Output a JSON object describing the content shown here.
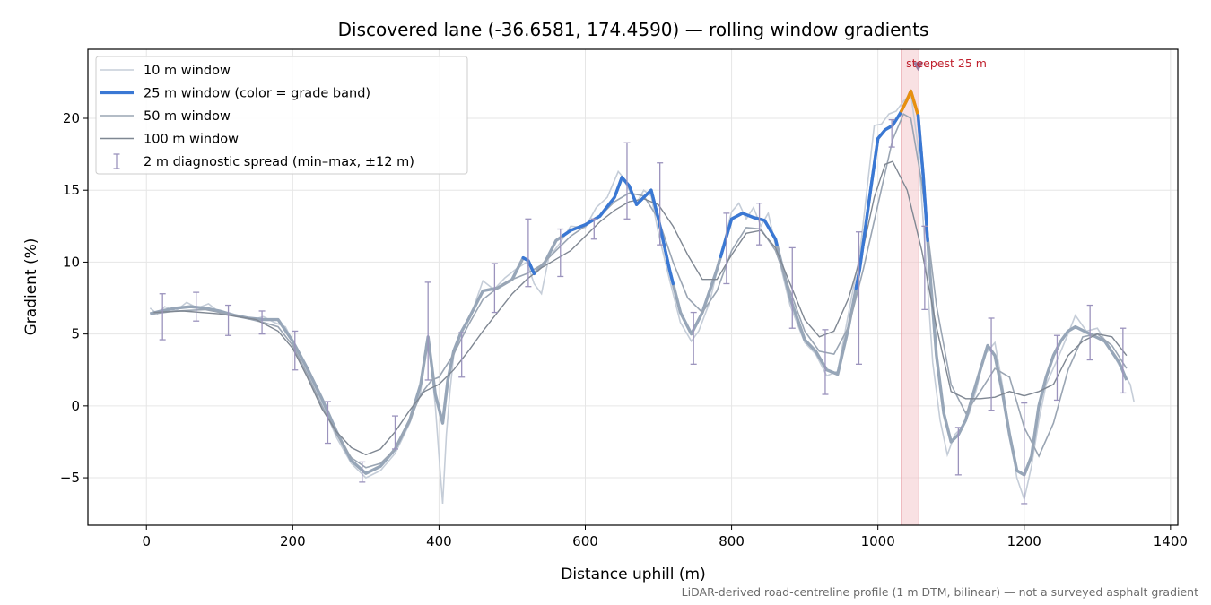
{
  "chart_data": {
    "type": "line",
    "title": "Discovered lane (-36.6581, 174.4590) — rolling window gradients",
    "xlabel": "Distance uphill (m)",
    "ylabel": "Gradient (%)",
    "footnote": "LiDAR-derived road-centreline profile (1 m DTM, bilinear) — not a surveyed asphalt gradient",
    "xlim": [
      -80,
      1410
    ],
    "ylim": [
      -8.3,
      24.8
    ],
    "xticks": [
      0,
      200,
      400,
      600,
      800,
      1000,
      1200,
      1400
    ],
    "yticks": [
      -5,
      0,
      5,
      10,
      15,
      20
    ],
    "xtick_labels": [
      "0",
      "200",
      "400",
      "600",
      "800",
      "1000",
      "1200",
      "1400"
    ],
    "ytick_labels": [
      "−5",
      "0",
      "5",
      "10",
      "15",
      "20"
    ],
    "grid": true,
    "legend_position": "top-left",
    "colors": {
      "w10": "#c5cdd8",
      "w25_base": "#97a6b8",
      "w25_band_blue": "#3a78d4",
      "w25_band_orange": "#e8900f",
      "w50": "#9aa5b3",
      "w100": "#7f8792",
      "errorbar": "#9b93bd",
      "highlight": "#f3c3c7",
      "annotation": "#c0202d"
    },
    "legend": [
      {
        "key": "w10",
        "label": "10 m window"
      },
      {
        "key": "w25",
        "label": "25 m window (color = grade band)"
      },
      {
        "key": "w50",
        "label": "50 m window"
      },
      {
        "key": "w100",
        "label": "100 m window"
      },
      {
        "key": "errorbar",
        "label": "2 m diagnostic spread (min–max, ±12 m)"
      }
    ],
    "highlight": {
      "x_start": 1032,
      "x_end": 1056,
      "label": "steepest 25 m",
      "marker_x": 1055,
      "marker_y": 23.6
    },
    "series": [
      {
        "name": "25 m window",
        "x": [
          5,
          20,
          40,
          60,
          80,
          100,
          120,
          140,
          160,
          180,
          200,
          220,
          240,
          260,
          280,
          300,
          320,
          340,
          360,
          375,
          385,
          395,
          405,
          412,
          420,
          430,
          440,
          460,
          480,
          500,
          515,
          522,
          530,
          545,
          560,
          580,
          600,
          620,
          640,
          650,
          660,
          670,
          680,
          690,
          700,
          715,
          730,
          745,
          760,
          780,
          800,
          815,
          830,
          845,
          860,
          880,
          900,
          915,
          930,
          945,
          960,
          975,
          990,
          1000,
          1010,
          1020,
          1030,
          1040,
          1045,
          1055,
          1062,
          1070,
          1080,
          1090,
          1100,
          1110,
          1120,
          1130,
          1140,
          1150,
          1160,
          1170,
          1180,
          1190,
          1200,
          1210,
          1220,
          1230,
          1240,
          1250,
          1260,
          1270,
          1290,
          1310,
          1330,
          1340
        ],
        "y": [
          6.4,
          6.6,
          6.8,
          6.9,
          6.8,
          6.6,
          6.3,
          6.1,
          6.0,
          6.0,
          4.5,
          2.6,
          0.5,
          -1.8,
          -3.8,
          -4.7,
          -4.2,
          -3.0,
          -1.0,
          1.5,
          4.8,
          0.8,
          -1.2,
          1.8,
          3.8,
          5.1,
          6.0,
          8.0,
          8.2,
          8.8,
          10.3,
          10.1,
          9.2,
          10.0,
          11.5,
          12.2,
          12.6,
          13.2,
          14.5,
          15.9,
          15.3,
          14.0,
          14.5,
          15.0,
          13.0,
          9.5,
          6.5,
          5.0,
          6.5,
          9.5,
          13.0,
          13.4,
          13.1,
          12.9,
          11.6,
          7.5,
          4.6,
          3.8,
          2.5,
          2.2,
          5.5,
          9.5,
          15.0,
          18.6,
          19.2,
          19.5,
          20.3,
          21.3,
          21.9,
          20.2,
          16.0,
          10.0,
          3.5,
          -0.5,
          -2.5,
          -2.0,
          -1.0,
          0.8,
          2.5,
          4.2,
          3.5,
          1.0,
          -2.0,
          -4.5,
          -4.8,
          -3.5,
          0.0,
          2.0,
          3.5,
          4.5,
          5.2,
          5.5,
          5.0,
          4.5,
          3.0,
          1.8
        ],
        "color_bands": [
          {
            "x_start": 515,
            "x_end": 530,
            "color": "blue"
          },
          {
            "x_start": 570,
            "x_end": 720,
            "color": "blue"
          },
          {
            "x_start": 785,
            "x_end": 862,
            "color": "blue"
          },
          {
            "x_start": 970,
            "x_end": 1032,
            "color": "blue"
          },
          {
            "x_start": 1032,
            "x_end": 1055,
            "color": "orange"
          },
          {
            "x_start": 1055,
            "x_end": 1068,
            "color": "blue"
          }
        ]
      },
      {
        "name": "10 m window",
        "x": [
          5,
          15,
          25,
          40,
          55,
          70,
          85,
          100,
          115,
          130,
          145,
          160,
          175,
          190,
          205,
          220,
          240,
          260,
          280,
          300,
          320,
          340,
          360,
          375,
          382,
          388,
          395,
          400,
          405,
          410,
          415,
          420,
          430,
          445,
          460,
          475,
          490,
          505,
          520,
          530,
          540,
          550,
          565,
          580,
          600,
          615,
          630,
          645,
          650,
          660,
          670,
          680,
          690,
          700,
          715,
          730,
          745,
          755,
          770,
          785,
          800,
          810,
          820,
          830,
          840,
          850,
          860,
          880,
          900,
          915,
          930,
          945,
          960,
          975,
          985,
          995,
          1005,
          1015,
          1025,
          1035,
          1045,
          1055,
          1065,
          1075,
          1085,
          1095,
          1105,
          1115,
          1125,
          1135,
          1145,
          1160,
          1170,
          1180,
          1190,
          1200,
          1210,
          1220,
          1230,
          1245,
          1260,
          1270,
          1285,
          1300,
          1315,
          1330,
          1345,
          1350
        ],
        "y": [
          6.8,
          6.4,
          6.9,
          6.6,
          7.2,
          6.8,
          7.1,
          6.5,
          6.3,
          6.2,
          6.0,
          6.2,
          5.8,
          5.5,
          4.0,
          2.4,
          0.2,
          -2.2,
          -4.0,
          -5.0,
          -4.5,
          -3.3,
          -1.2,
          1.0,
          4.2,
          3.5,
          0.0,
          -3.5,
          -6.8,
          -2.0,
          1.0,
          3.5,
          5.0,
          6.5,
          8.7,
          8.1,
          8.9,
          9.5,
          10.0,
          8.5,
          7.8,
          10.3,
          11.3,
          12.5,
          12.4,
          13.8,
          14.5,
          16.3,
          16.0,
          15.0,
          14.1,
          15.0,
          14.6,
          12.0,
          8.8,
          5.8,
          4.5,
          5.2,
          7.2,
          10.5,
          13.5,
          14.1,
          13.0,
          13.8,
          12.5,
          13.4,
          11.2,
          7.0,
          4.4,
          3.6,
          2.1,
          2.4,
          6.5,
          10.5,
          15.0,
          19.5,
          19.6,
          20.3,
          20.5,
          21.2,
          21.7,
          18.0,
          10.5,
          3.0,
          -1.0,
          -3.4,
          -2.0,
          -1.5,
          -0.5,
          1.2,
          3.5,
          4.4,
          1.5,
          -1.8,
          -5.0,
          -6.5,
          -4.2,
          -1.0,
          1.5,
          3.2,
          5.0,
          6.3,
          5.2,
          5.4,
          4.2,
          2.8,
          1.5,
          0.3
        ],
        "color": "w10"
      },
      {
        "name": "50 m window",
        "x": [
          10,
          40,
          80,
          120,
          160,
          180,
          200,
          220,
          240,
          260,
          280,
          300,
          320,
          340,
          360,
          375,
          390,
          400,
          420,
          440,
          460,
          480,
          500,
          520,
          540,
          560,
          580,
          600,
          620,
          640,
          660,
          680,
          700,
          720,
          740,
          760,
          780,
          800,
          820,
          840,
          860,
          880,
          900,
          920,
          940,
          960,
          980,
          1000,
          1020,
          1035,
          1045,
          1060,
          1080,
          1100,
          1120,
          1140,
          1160,
          1180,
          1200,
          1220,
          1240,
          1260,
          1280,
          1300,
          1320,
          1340
        ],
        "y": [
          6.4,
          6.6,
          6.7,
          6.3,
          5.8,
          5.5,
          4.2,
          2.2,
          0.0,
          -2.0,
          -3.6,
          -4.3,
          -4.0,
          -3.0,
          -1.0,
          0.8,
          1.8,
          2.0,
          3.6,
          5.6,
          7.4,
          8.2,
          8.8,
          9.2,
          9.8,
          10.8,
          11.8,
          12.5,
          13.2,
          14.2,
          14.8,
          14.6,
          13.0,
          10.0,
          7.5,
          6.5,
          8.0,
          10.8,
          12.4,
          12.3,
          10.8,
          8.0,
          5.2,
          3.8,
          3.6,
          5.5,
          9.5,
          14.0,
          18.5,
          20.3,
          20.0,
          15.5,
          7.0,
          1.5,
          -0.5,
          1.0,
          2.6,
          2.0,
          -1.5,
          -3.5,
          -1.2,
          2.5,
          4.8,
          5.0,
          4.2,
          2.6
        ],
        "color": "w50"
      },
      {
        "name": "100 m window",
        "x": [
          10,
          50,
          100,
          150,
          180,
          200,
          220,
          240,
          260,
          280,
          300,
          320,
          340,
          360,
          380,
          400,
          420,
          440,
          460,
          480,
          500,
          520,
          540,
          560,
          580,
          600,
          620,
          640,
          660,
          680,
          700,
          720,
          740,
          760,
          780,
          800,
          820,
          840,
          860,
          880,
          900,
          920,
          940,
          960,
          980,
          995,
          1010,
          1020,
          1040,
          1060,
          1080,
          1100,
          1120,
          1140,
          1160,
          1180,
          1200,
          1220,
          1240,
          1260,
          1280,
          1300,
          1320,
          1340
        ],
        "y": [
          6.5,
          6.6,
          6.4,
          6.0,
          5.2,
          4.0,
          2.0,
          -0.2,
          -1.8,
          -2.9,
          -3.4,
          -3.0,
          -1.8,
          -0.3,
          1.0,
          1.5,
          2.5,
          3.8,
          5.2,
          6.5,
          7.8,
          8.8,
          9.6,
          10.2,
          10.8,
          11.8,
          12.8,
          13.6,
          14.2,
          14.4,
          14.0,
          12.5,
          10.5,
          8.8,
          8.8,
          10.5,
          12.0,
          12.2,
          11.0,
          8.5,
          6.0,
          4.8,
          5.2,
          7.5,
          11.0,
          14.5,
          16.8,
          17.0,
          15.0,
          10.8,
          5.5,
          1.0,
          0.5,
          0.5,
          0.6,
          1.0,
          0.7,
          1.0,
          1.5,
          3.5,
          4.5,
          5.0,
          4.8,
          3.5
        ],
        "color": "w100"
      }
    ],
    "errorbars": [
      {
        "x": 22,
        "low": 4.6,
        "high": 7.8
      },
      {
        "x": 68,
        "low": 5.9,
        "high": 7.9
      },
      {
        "x": 112,
        "low": 4.9,
        "high": 7.0
      },
      {
        "x": 158,
        "low": 5.0,
        "high": 6.6
      },
      {
        "x": 203,
        "low": 2.5,
        "high": 5.2
      },
      {
        "x": 248,
        "low": -2.6,
        "high": 0.3
      },
      {
        "x": 295,
        "low": -5.3,
        "high": -3.9
      },
      {
        "x": 340,
        "low": -3.0,
        "high": -0.7
      },
      {
        "x": 385,
        "low": 1.8,
        "high": 8.6
      },
      {
        "x": 431,
        "low": 2.0,
        "high": 5.1
      },
      {
        "x": 476,
        "low": 6.5,
        "high": 9.9
      },
      {
        "x": 522,
        "low": 8.3,
        "high": 13.0
      },
      {
        "x": 566,
        "low": 9.0,
        "high": 12.3
      },
      {
        "x": 612,
        "low": 11.6,
        "high": 13.0
      },
      {
        "x": 657,
        "low": 13.0,
        "high": 18.3
      },
      {
        "x": 702,
        "low": 11.2,
        "high": 16.9
      },
      {
        "x": 748,
        "low": 2.9,
        "high": 6.5
      },
      {
        "x": 793,
        "low": 8.5,
        "high": 13.4
      },
      {
        "x": 838,
        "low": 11.2,
        "high": 14.1
      },
      {
        "x": 883,
        "low": 5.4,
        "high": 11.0
      },
      {
        "x": 928,
        "low": 0.8,
        "high": 5.3
      },
      {
        "x": 974,
        "low": 2.9,
        "high": 12.1
      },
      {
        "x": 1019,
        "low": 18.0,
        "high": 19.9
      },
      {
        "x": 1064,
        "low": 6.7,
        "high": 12.5
      },
      {
        "x": 1110,
        "low": -4.8,
        "high": -1.5
      },
      {
        "x": 1155,
        "low": -0.3,
        "high": 6.1
      },
      {
        "x": 1200,
        "low": -6.8,
        "high": 0.2
      },
      {
        "x": 1245,
        "low": 0.4,
        "high": 4.9
      },
      {
        "x": 1290,
        "low": 3.2,
        "high": 7.0
      },
      {
        "x": 1335,
        "low": 0.9,
        "high": 5.4
      }
    ]
  }
}
